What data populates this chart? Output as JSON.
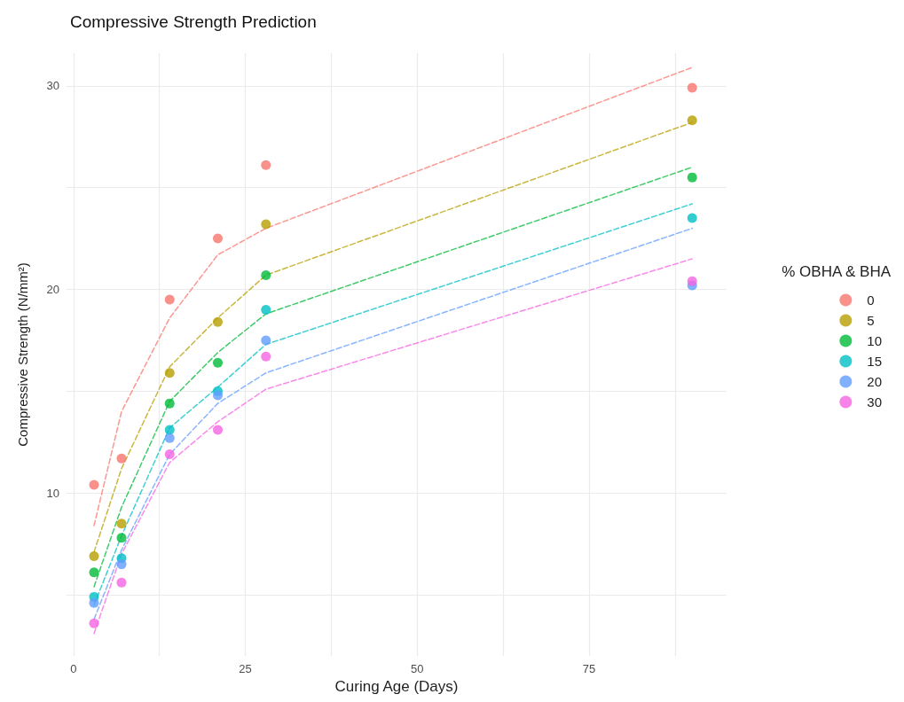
{
  "chart_data": {
    "type": "scatter",
    "title": "Compressive Strength Prediction",
    "xlabel": "Curing Age (Days)",
    "ylabel": "Compressive Strength (N/mm²)",
    "legend_title": "% OBHA & BHA",
    "legend": "right",
    "grid": true,
    "marker": "circle",
    "x": [
      3,
      7,
      14,
      21,
      28,
      90
    ],
    "xlim": [
      -1,
      95
    ],
    "xticks": [
      0,
      {
        "value": 12.5,
        "label": null
      },
      25,
      {
        "value": 37.5,
        "label": null
      },
      50,
      {
        "value": 62.5,
        "label": null
      },
      75,
      {
        "value": 87.5,
        "label": null
      }
    ],
    "ylim": [
      2,
      31.6
    ],
    "yticks": [
      {
        "value": 5,
        "label": null
      },
      10,
      {
        "value": 15,
        "label": null
      },
      20,
      {
        "value": 25,
        "label": null
      },
      30
    ],
    "series": [
      {
        "name": "0",
        "color": "#f8766d",
        "values": [
          10.4,
          11.7,
          19.5,
          22.5,
          26.1,
          29.9
        ]
      },
      {
        "name": "5",
        "color": "#b79f00",
        "values": [
          6.9,
          8.5,
          15.9,
          18.4,
          23.2,
          28.3
        ]
      },
      {
        "name": "10",
        "color": "#00ba38",
        "values": [
          6.1,
          7.8,
          14.4,
          16.4,
          20.7,
          25.5
        ]
      },
      {
        "name": "15",
        "color": "#00bfc4",
        "values": [
          4.9,
          6.8,
          13.1,
          15.0,
          19.0,
          23.5
        ]
      },
      {
        "name": "20",
        "color": "#619cff",
        "values": [
          4.6,
          6.5,
          12.7,
          14.8,
          17.5,
          20.2
        ]
      },
      {
        "name": "30",
        "color": "#f564e3",
        "values": [
          3.6,
          5.6,
          11.9,
          13.1,
          16.7,
          20.4
        ]
      },
      {
        "type": "line",
        "color": "#f8766d",
        "marker": "none",
        "line_style": "dashed",
        "values": [
          8.4,
          14.0,
          18.6,
          21.7,
          23.0,
          30.9
        ]
      },
      {
        "type": "line",
        "color": "#b79f00",
        "marker": "none",
        "line_style": "dashed",
        "values": [
          7.1,
          11.2,
          16.2,
          18.6,
          20.7,
          28.2
        ]
      },
      {
        "type": "line",
        "color": "#00ba38",
        "marker": "none",
        "line_style": "dashed",
        "values": [
          5.4,
          9.3,
          14.5,
          16.9,
          18.8,
          26.0
        ]
      },
      {
        "type": "line",
        "color": "#00bfc4",
        "marker": "none",
        "line_style": "dashed",
        "values": [
          4.5,
          7.9,
          13.2,
          15.2,
          17.3,
          24.2
        ]
      },
      {
        "type": "line",
        "color": "#619cff",
        "marker": "none",
        "line_style": "dashed",
        "values": [
          3.8,
          7.2,
          11.9,
          14.4,
          15.9,
          23.0
        ]
      },
      {
        "type": "line",
        "color": "#f564e3",
        "marker": "none",
        "line_style": "dashed",
        "values": [
          3.1,
          7.0,
          11.5,
          13.5,
          15.1,
          21.5
        ]
      }
    ]
  }
}
